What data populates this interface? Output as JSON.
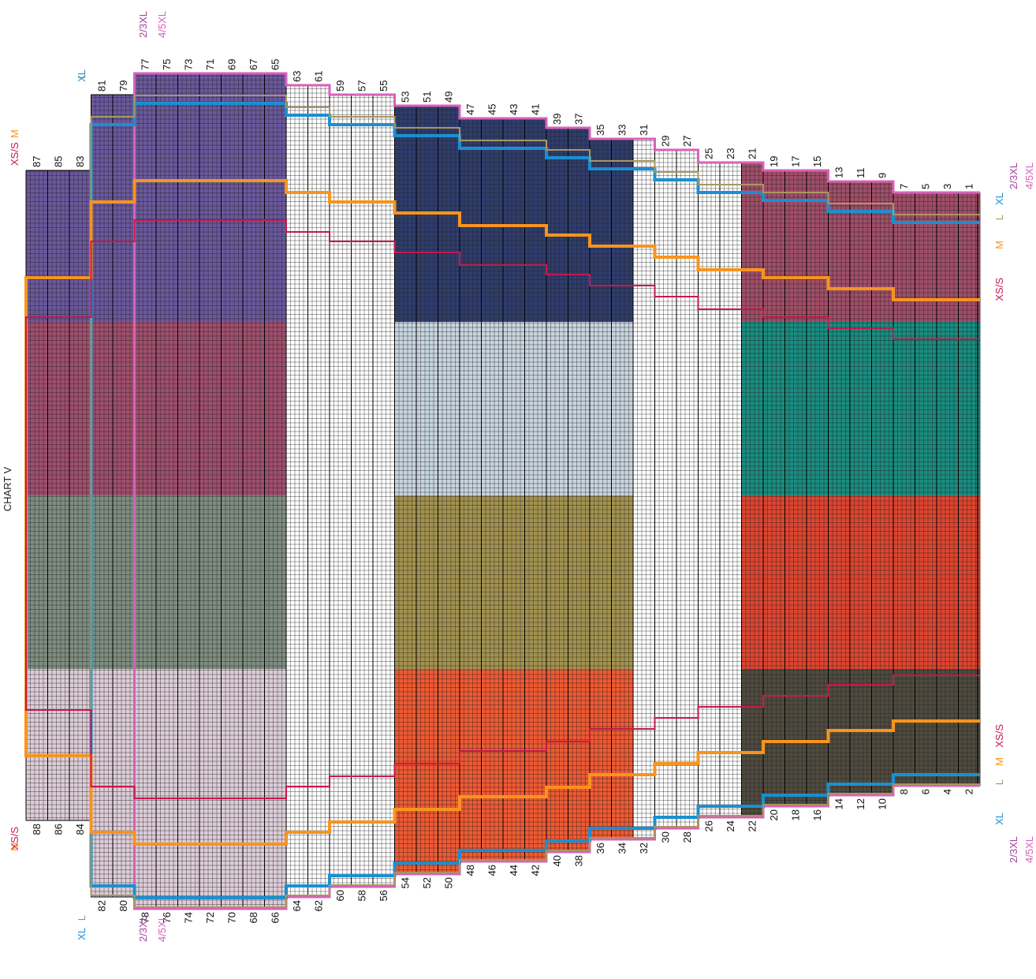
{
  "title": "CHART V",
  "sizes": [
    {
      "key": "xs",
      "label": "XS/S",
      "color": "#c8174b"
    },
    {
      "key": "m",
      "label": "M",
      "color": "#f7941d"
    },
    {
      "key": "l",
      "label": "L",
      "color": "#a89660"
    },
    {
      "key": "xl",
      "label": "XL",
      "color": "#1b8fd1"
    },
    {
      "key": "xxl",
      "label": "2/3XL",
      "color": "#a0439b"
    },
    {
      "key": "xxxxl",
      "label": "4/5XL",
      "color": "#d961b9"
    }
  ],
  "rows_odd": [
    1,
    3,
    5,
    7,
    9,
    11,
    13,
    15,
    17,
    19,
    21,
    23,
    25,
    27,
    29,
    31,
    33,
    35,
    37,
    39,
    41,
    43,
    45,
    47,
    49,
    51,
    53,
    55,
    57,
    59,
    61,
    63,
    65,
    67,
    69,
    71,
    73,
    75,
    77,
    79,
    81,
    83,
    85,
    87
  ],
  "rows_even": [
    2,
    4,
    6,
    8,
    10,
    12,
    14,
    16,
    18,
    20,
    22,
    24,
    26,
    28,
    30,
    32,
    34,
    36,
    38,
    40,
    42,
    44,
    46,
    48,
    50,
    52,
    54,
    56,
    58,
    60,
    62,
    64,
    66,
    68,
    70,
    72,
    74,
    76,
    78,
    80,
    82,
    84,
    86,
    88
  ],
  "color_blocks": [
    {
      "band": "left",
      "colors": [
        "#6a589c",
        "#9e4f6c",
        "#7f8d81",
        "#dccdd8"
      ]
    },
    {
      "band": "middle",
      "colors": [
        "#2f3d6c",
        "#c8d5df",
        "#a3924f",
        "#ef5a33"
      ]
    },
    {
      "band": "right",
      "colors": [
        "#a04e68",
        "#1a8c80",
        "#de4530",
        "#4f4b3f"
      ]
    }
  ]
}
